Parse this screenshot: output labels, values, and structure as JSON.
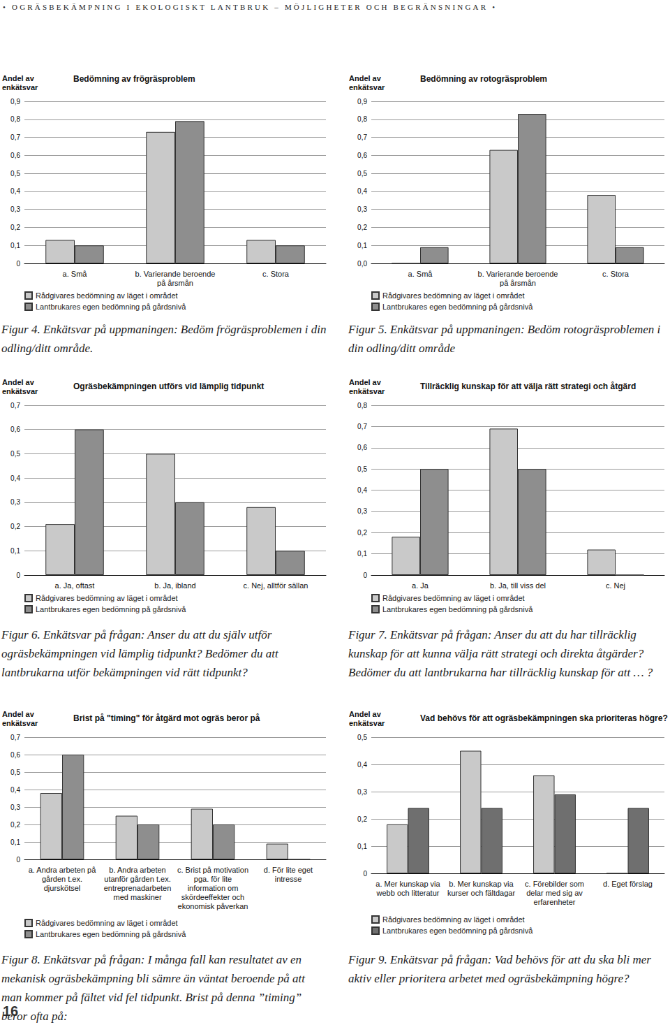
{
  "header": "• OGRÄSBEKÄMPNING I EKOLOGISKT LANTBRUK – MÖJLIGHETER OCH BEGRÄNSNINGAR •",
  "page_number": "16",
  "chart_data": [
    {
      "type": "bar",
      "title": "Bedömning av frögräsproblem",
      "y_label": "Andel av\nenkätsvar",
      "caption": "Figur 4. Enkätsvar på uppmaningen: Bedöm frögräsproblemen i din odling/ditt område.",
      "categories": [
        "a. Små",
        "b. Varierande beroende\npå årsmån",
        "c. Stora"
      ],
      "series": [
        {
          "name": "Rådgivares bedömning av läget i området",
          "color": "#c9c9c9",
          "values": [
            0.13,
            0.73,
            0.13
          ]
        },
        {
          "name": "Lantbrukares egen bedömning på gårdsnivå",
          "color": "#8e8e8e",
          "values": [
            0.1,
            0.79,
            0.1
          ]
        }
      ],
      "ylim": [
        0,
        0.9
      ],
      "yticks": [
        0,
        {
          "value": 0.1,
          "label": "0,1"
        },
        {
          "value": 0.2,
          "label": "0,2"
        },
        {
          "value": 0.3,
          "label": "0,3"
        },
        {
          "value": 0.4,
          "label": "0,4"
        },
        {
          "value": 0.5,
          "label": "0,5"
        },
        {
          "value": 0.6,
          "label": "0,6"
        },
        {
          "value": 0.7,
          "label": "0,7"
        },
        {
          "value": 0.8,
          "label": "0,8"
        },
        {
          "value": 0.9,
          "label": "0,9"
        }
      ],
      "grid": true,
      "legend": "lower left"
    },
    {
      "type": "bar",
      "title": "Bedömning av rotogräsproblem",
      "y_label": "Andel av\nenkätsvar",
      "caption": "Figur 5. Enkätsvar på uppmaningen: Bedöm rotogräsproblemen i din odling/ditt område",
      "categories": [
        "a. Små",
        "b. Varierande beroende\npå årsmån",
        "c. Stora"
      ],
      "series": [
        {
          "name": "Rådgivares bedömning av läget i området",
          "color": "#c9c9c9",
          "values": [
            0,
            0.63,
            0.38
          ]
        },
        {
          "name": "Lantbrukares egen bedömning på gårdsnivå",
          "color": "#8e8e8e",
          "values": [
            0.09,
            0.83,
            0.09
          ]
        }
      ],
      "ylim": [
        0,
        0.9
      ],
      "yticks": [
        {
          "value": 0,
          "label": "0,0"
        },
        {
          "value": 0.1,
          "label": "0,1"
        },
        {
          "value": 0.2,
          "label": "0,2"
        },
        {
          "value": 0.3,
          "label": "0,3"
        },
        {
          "value": 0.4,
          "label": "0,4"
        },
        {
          "value": 0.5,
          "label": "0,5"
        },
        {
          "value": 0.6,
          "label": "0,6"
        },
        {
          "value": 0.7,
          "label": "0,7"
        },
        {
          "value": 0.8,
          "label": "0,8"
        },
        {
          "value": 0.9,
          "label": "0,9"
        }
      ],
      "grid": true,
      "legend": "lower left"
    },
    {
      "type": "bar",
      "title": "Ogräsbekämpningen utförs vid lämplig tidpunkt",
      "y_label": "Andel av\nenkätsvar",
      "caption": "Figur 6. Enkätsvar på frågan: Anser du att du själv utför ogräsbekämpningen vid lämplig tidpunkt? Bedömer du att lantbrukarna utför bekämpningen vid rätt tidpunkt?",
      "categories": [
        "a. Ja, oftast",
        "b. Ja, ibland",
        "c. Nej, alltför sällan"
      ],
      "series": [
        {
          "name": "Rådgivares bedömning av läget i området",
          "color": "#c9c9c9",
          "values": [
            0.21,
            0.5,
            0.28
          ]
        },
        {
          "name": "Lantbrukares egen bedömning på gårdsnivå",
          "color": "#8e8e8e",
          "values": [
            0.6,
            0.3,
            0.1
          ]
        }
      ],
      "ylim": [
        0,
        0.7
      ],
      "yticks": [
        0,
        {
          "value": 0.1,
          "label": "0,1"
        },
        {
          "value": 0.2,
          "label": "0,2"
        },
        {
          "value": 0.3,
          "label": "0,3"
        },
        {
          "value": 0.4,
          "label": "0,4"
        },
        {
          "value": 0.5,
          "label": "0,5"
        },
        {
          "value": 0.6,
          "label": "0,6"
        },
        {
          "value": 0.7,
          "label": "0,7"
        }
      ],
      "grid": true,
      "legend": "lower left"
    },
    {
      "type": "bar",
      "title": "Tillräcklig kunskap för att välja rätt strategi och åtgärd",
      "y_label": "Andel av\nenkätsvar",
      "caption": "Figur 7. Enkätsvar på frågan: Anser du att du har tillräcklig kunskap för att kunna välja rätt strategi och direkta åtgärder? Bedömer du att lantbrukarna har tillräcklig kunskap för att … ?",
      "categories": [
        "a. Ja",
        "b. Ja, till viss del",
        "c. Nej"
      ],
      "series": [
        {
          "name": "Rådgivares bedömning av läget i området",
          "color": "#c9c9c9",
          "values": [
            0.18,
            0.69,
            0.12
          ]
        },
        {
          "name": "Lantbrukares egen bedömning på gårdsnivå",
          "color": "#8e8e8e",
          "values": [
            0.5,
            0.5,
            0
          ]
        }
      ],
      "ylim": [
        0,
        0.8
      ],
      "yticks": [
        0,
        {
          "value": 0.1,
          "label": "0,1"
        },
        {
          "value": 0.2,
          "label": "0,2"
        },
        {
          "value": 0.3,
          "label": "0,3"
        },
        {
          "value": 0.4,
          "label": "0,4"
        },
        {
          "value": 0.5,
          "label": "0,5"
        },
        {
          "value": 0.6,
          "label": "0,6"
        },
        {
          "value": 0.7,
          "label": "0,7"
        },
        {
          "value": 0.8,
          "label": "0,8"
        }
      ],
      "grid": true,
      "legend": "lower left"
    },
    {
      "type": "bar",
      "title": "Brist på \"timing\" för åtgärd mot ogräs beror på",
      "y_label": "Andel av\nenkätsvar",
      "caption": "Figur 8. Enkätsvar på frågan: I många fall kan resultatet av en mekanisk ogräsbekämpning bli sämre än väntat beroende på att man kommer på fältet vid fel tidpunkt. Brist på denna ”timing” beror ofta på:",
      "categories": [
        "a. Andra arbeten på\ngården t.ex.\ndjurskötsel",
        "b. Andra arbeten\nutanför gården t.ex.\nentreprenadarbeten\nmed maskiner",
        "c. Brist på motivation\npga. för lite\ninformation om\nskördeeffekter och\nekonomisk påverkan",
        "d. För lite eget\nintresse"
      ],
      "series": [
        {
          "name": "Rådgivares bedömning av läget i området",
          "color": "#c9c9c9",
          "values": [
            0.38,
            0.25,
            0.29,
            0.09
          ]
        },
        {
          "name": "Lantbrukares egen bedömning på gårdsnivå",
          "color": "#8e8e8e",
          "values": [
            0.6,
            0.2,
            0.2,
            0
          ]
        }
      ],
      "ylim": [
        0,
        0.7
      ],
      "yticks": [
        0,
        {
          "value": 0.1,
          "label": "0,1"
        },
        {
          "value": 0.2,
          "label": "0,2"
        },
        {
          "value": 0.3,
          "label": "0,3"
        },
        {
          "value": 0.4,
          "label": "0,4"
        },
        {
          "value": 0.5,
          "label": "0,5"
        },
        {
          "value": 0.6,
          "label": "0,6"
        },
        {
          "value": 0.7,
          "label": "0,7"
        }
      ],
      "grid": true,
      "legend": "lower left"
    },
    {
      "type": "bar",
      "title": "Vad behövs för att ogräsbekämpningen ska prioriteras högre?",
      "y_label": "Andel av\nenkätsvar",
      "caption": "Figur 9. Enkätsvar på frågan: Vad behövs för att du ska bli mer aktiv eller prioritera arbetet med ogräsbekämpning högre?",
      "categories": [
        "a. Mer kunskap via\nwebb och litteratur",
        "b. Mer kunskap via\nkurser och fältdagar",
        "c. Förebilder som\ndelar med sig av\nerfarenheter",
        "d. Eget förslag"
      ],
      "series": [
        {
          "name": "Rådgivares bedömning av läget i området",
          "color": "#c9c9c9",
          "values": [
            0.18,
            0.45,
            0.36,
            0
          ]
        },
        {
          "name": "Lantbrukares egen bedömning på gårdsnivå",
          "color": "#6f6f6f",
          "values": [
            0.24,
            0.24,
            0.29,
            0.24
          ]
        }
      ],
      "ylim": [
        0,
        0.5
      ],
      "yticks": [
        0,
        {
          "value": 0.1,
          "label": "0,1"
        },
        {
          "value": 0.2,
          "label": "0,2"
        },
        {
          "value": 0.3,
          "label": "0,3"
        },
        {
          "value": 0.4,
          "label": "0,4"
        },
        {
          "value": 0.5,
          "label": "0,5"
        }
      ],
      "grid": true,
      "legend": "lower left"
    }
  ]
}
